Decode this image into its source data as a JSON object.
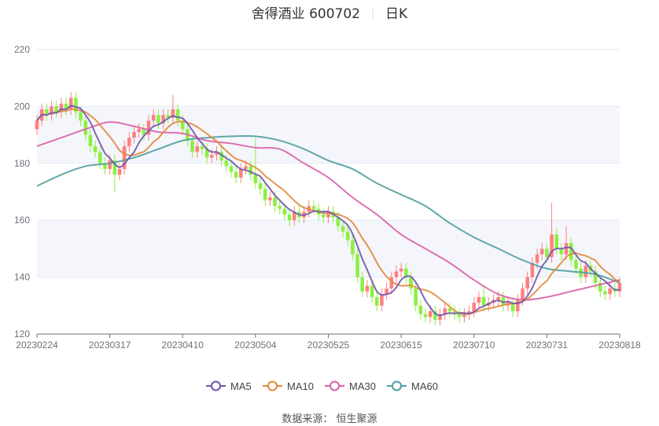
{
  "chart_data": {
    "type": "candlestick",
    "title": "舍得酒业 600702",
    "period_label": "日K",
    "ylim": [
      120,
      220
    ],
    "y_ticks": [
      "120",
      "140",
      "160",
      "180",
      "200",
      "220"
    ],
    "x_ticks": [
      {
        "index": 0,
        "label": "20230224"
      },
      {
        "index": 15,
        "label": "20230317"
      },
      {
        "index": 30,
        "label": "20230410"
      },
      {
        "index": 45,
        "label": "20230504"
      },
      {
        "index": 60,
        "label": "20230525"
      },
      {
        "index": 75,
        "label": "20230615"
      },
      {
        "index": 90,
        "label": "20230710"
      },
      {
        "index": 105,
        "label": "20230731"
      },
      {
        "index": 120,
        "label": "20230818"
      }
    ],
    "grid": true,
    "colors": {
      "up": "#fd8080",
      "down": "#8cf043",
      "ma5": "#7256ad",
      "ma10": "#e38a3c",
      "ma30": "#dc62aa",
      "ma60": "#4f9fa0",
      "band": "#f4f6fb",
      "grid": "#e4e9f3"
    },
    "open": [
      192,
      195,
      199,
      197,
      200,
      198,
      201,
      199,
      203,
      198,
      195,
      190,
      186,
      184,
      180,
      178,
      181,
      176,
      178,
      186,
      189,
      191,
      192,
      190,
      195,
      197,
      194,
      197,
      196,
      199,
      195,
      192,
      188,
      184,
      186,
      185,
      182,
      183,
      184,
      181,
      179,
      177,
      175,
      178,
      179,
      176,
      173,
      171,
      167,
      168,
      165,
      164,
      162,
      160,
      163,
      161,
      163,
      165,
      164,
      162,
      161,
      163,
      161,
      158,
      156,
      153,
      148,
      140,
      135,
      137,
      133,
      130,
      134,
      136,
      140,
      142,
      143,
      140,
      136,
      130,
      127,
      126,
      128,
      125,
      127,
      129,
      128,
      127,
      126,
      127,
      128,
      131,
      133,
      130,
      131,
      132,
      133,
      130,
      131,
      128,
      132,
      136,
      140,
      145,
      148,
      150,
      147,
      155,
      150,
      148,
      152,
      146,
      143,
      140,
      144,
      142,
      138,
      135,
      134,
      136,
      135
    ],
    "close": [
      195,
      199,
      197,
      200,
      198,
      201,
      199,
      203,
      198,
      195,
      190,
      186,
      184,
      180,
      178,
      181,
      176,
      178,
      186,
      189,
      191,
      192,
      190,
      195,
      197,
      194,
      197,
      196,
      199,
      195,
      192,
      188,
      184,
      186,
      185,
      182,
      183,
      184,
      181,
      179,
      177,
      175,
      178,
      179,
      176,
      173,
      171,
      167,
      168,
      165,
      164,
      162,
      160,
      163,
      161,
      163,
      165,
      164,
      162,
      161,
      163,
      161,
      158,
      156,
      153,
      148,
      140,
      135,
      137,
      133,
      130,
      134,
      136,
      140,
      142,
      143,
      140,
      136,
      130,
      127,
      126,
      128,
      125,
      127,
      129,
      128,
      127,
      126,
      127,
      128,
      131,
      133,
      130,
      131,
      132,
      133,
      130,
      131,
      128,
      132,
      136,
      140,
      145,
      148,
      150,
      147,
      155,
      150,
      148,
      152,
      146,
      143,
      140,
      144,
      142,
      138,
      135,
      134,
      136,
      135,
      138
    ],
    "high": [
      197,
      201,
      201,
      202,
      202,
      203,
      203,
      205,
      205,
      200,
      197,
      192,
      188,
      186,
      182,
      183,
      183,
      180,
      188,
      191,
      193,
      194,
      194,
      197,
      199,
      199,
      199,
      199,
      204,
      201,
      197,
      194,
      190,
      188,
      188,
      187,
      185,
      186,
      186,
      183,
      181,
      179,
      180,
      181,
      181,
      189,
      175,
      173,
      170,
      170,
      167,
      166,
      164,
      165,
      165,
      165,
      167,
      167,
      166,
      164,
      165,
      165,
      163,
      160,
      158,
      155,
      150,
      142,
      139,
      139,
      135,
      136,
      138,
      142,
      144,
      145,
      145,
      142,
      138,
      132,
      129,
      130,
      130,
      129,
      131,
      131,
      130,
      129,
      129,
      130,
      133,
      135,
      137,
      133,
      134,
      135,
      135,
      133,
      133,
      134,
      138,
      142,
      147,
      150,
      152,
      152,
      166,
      157,
      152,
      158,
      154,
      148,
      145,
      146,
      146,
      144,
      140,
      137,
      138,
      138,
      140
    ],
    "low": [
      190,
      193,
      195,
      195,
      196,
      196,
      197,
      197,
      196,
      193,
      188,
      184,
      182,
      178,
      176,
      176,
      170,
      174,
      176,
      184,
      187,
      189,
      188,
      188,
      193,
      192,
      192,
      194,
      194,
      193,
      190,
      186,
      182,
      182,
      183,
      180,
      180,
      181,
      179,
      177,
      175,
      173,
      173,
      176,
      174,
      171,
      169,
      165,
      165,
      163,
      162,
      160,
      158,
      158,
      159,
      159,
      161,
      162,
      160,
      159,
      159,
      159,
      156,
      154,
      151,
      146,
      138,
      133,
      133,
      131,
      128,
      128,
      132,
      134,
      138,
      140,
      138,
      134,
      128,
      125,
      124,
      124,
      123,
      123,
      125,
      126,
      125,
      124,
      124,
      125,
      126,
      129,
      128,
      128,
      129,
      130,
      128,
      128,
      126,
      126,
      130,
      134,
      138,
      143,
      146,
      145,
      145,
      148,
      146,
      146,
      144,
      141,
      138,
      138,
      140,
      136,
      133,
      132,
      132,
      133,
      133
    ],
    "ma_sample_step": 5,
    "ma30_sampled": [
      186,
      189,
      192,
      194.5,
      193,
      191,
      190.5,
      188,
      187,
      185.5,
      185,
      180,
      175,
      168,
      162,
      155,
      150,
      145,
      139,
      134,
      132,
      133,
      135,
      137,
      139
    ],
    "ma60_sampled": [
      172,
      176,
      179,
      180,
      182,
      185,
      188,
      189,
      189.5,
      189.5,
      188,
      185,
      181,
      178,
      173,
      169,
      165,
      159,
      154,
      150,
      146,
      143,
      142,
      141,
      138
    ],
    "legend": [
      {
        "key": "ma5",
        "label": "MA5"
      },
      {
        "key": "ma10",
        "label": "MA10"
      },
      {
        "key": "ma30",
        "label": "MA30"
      },
      {
        "key": "ma60",
        "label": "MA60"
      }
    ],
    "legend_placement": "bottom",
    "source": "数据来源：  恒生聚源"
  }
}
